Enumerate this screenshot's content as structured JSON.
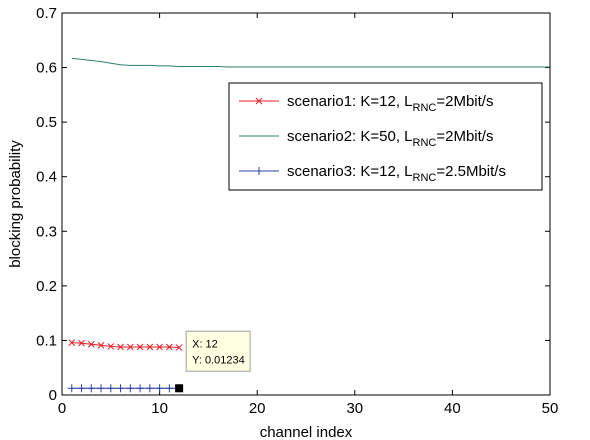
{
  "chart_data": {
    "type": "line",
    "xlabel": "channel index",
    "ylabel": "blocking probability",
    "xlim": [
      0,
      50
    ],
    "ylim": [
      0,
      0.7
    ],
    "xticks": [
      0,
      10,
      20,
      30,
      40,
      50
    ],
    "yticks": [
      0,
      0.1,
      0.2,
      0.3,
      0.4,
      0.5,
      0.6,
      0.7
    ],
    "legend_placement": "upper-right",
    "grid": false,
    "series": [
      {
        "name_parts": {
          "prefix": "scenario1: K=12, L",
          "sub": "RNC",
          "suffix": "=2Mbit/s"
        },
        "color": "#e8222a",
        "marker": "x",
        "x": [
          1,
          2,
          3,
          4,
          5,
          6,
          7,
          8,
          9,
          10,
          11,
          12
        ],
        "y": [
          0.096,
          0.095,
          0.093,
          0.091,
          0.089,
          0.088,
          0.088,
          0.088,
          0.088,
          0.088,
          0.088,
          0.087
        ]
      },
      {
        "name_parts": {
          "prefix": "scenario2: K=50, L",
          "sub": "RNC",
          "suffix": "=2Mbit/s"
        },
        "color": "#2f7f6f",
        "marker": "none",
        "x": [
          1,
          2,
          3,
          4,
          5,
          6,
          7,
          8,
          9,
          10,
          11,
          12,
          13,
          14,
          15,
          16,
          17,
          18,
          19,
          20,
          25,
          30,
          35,
          40,
          45,
          50
        ],
        "y": [
          0.617,
          0.615,
          0.613,
          0.611,
          0.608,
          0.605,
          0.604,
          0.604,
          0.604,
          0.603,
          0.603,
          0.602,
          0.602,
          0.602,
          0.602,
          0.602,
          0.601,
          0.601,
          0.601,
          0.601,
          0.601,
          0.601,
          0.601,
          0.601,
          0.601,
          0.601
        ]
      },
      {
        "name_parts": {
          "prefix": "scenario3: K=12, L",
          "sub": "RNC",
          "suffix": "=2.5Mbit/s"
        },
        "color": "#2b3fa6",
        "marker": "+",
        "x": [
          1,
          2,
          3,
          4,
          5,
          6,
          7,
          8,
          9,
          10,
          11,
          12
        ],
        "y": [
          0.0123,
          0.0123,
          0.0123,
          0.0123,
          0.0123,
          0.0123,
          0.0123,
          0.0123,
          0.0123,
          0.0123,
          0.0123,
          0.01234
        ]
      }
    ],
    "datatip": {
      "x_value": 12,
      "y_value": 0.01234,
      "x_text": "X: 12",
      "y_text": "Y: 0.01234"
    }
  }
}
